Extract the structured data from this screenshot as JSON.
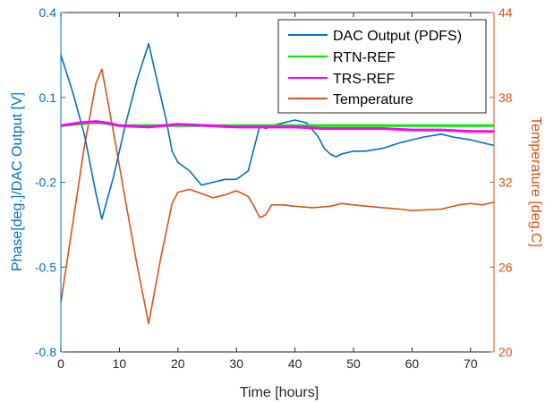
{
  "chart_data": {
    "type": "line",
    "xlabel": "Time [hours]",
    "ylabel_left": "Phase[deg.]/DAC Output [V]",
    "ylabel_right": "Temperature [deg.C]",
    "xlim": [
      0,
      74
    ],
    "xticks": [
      0,
      10,
      20,
      30,
      40,
      50,
      60,
      70
    ],
    "ylim_left": [
      -0.8,
      0.4
    ],
    "yticks_left": [
      -0.8,
      -0.5,
      -0.2,
      0.1,
      0.4
    ],
    "ylim_right": [
      20,
      44
    ],
    "yticks_right": [
      20,
      26,
      32,
      38,
      44
    ],
    "legend_position": "top-right",
    "grid": false,
    "series": [
      {
        "name": "DAC Output (PDFS)",
        "axis": "left",
        "color": "#0072BD",
        "x": [
          0,
          2,
          4,
          6,
          7,
          9,
          11,
          13,
          15,
          16,
          18,
          19,
          20,
          22,
          24,
          26,
          28,
          30,
          32,
          33,
          34,
          35,
          36,
          38,
          40,
          42,
          44,
          45,
          46,
          47,
          48,
          50,
          52,
          55,
          58,
          60,
          62,
          65,
          67,
          70,
          72,
          74
        ],
        "y": [
          0.25,
          0.12,
          -0.03,
          -0.24,
          -0.33,
          -0.18,
          0.0,
          0.16,
          0.29,
          0.2,
          0.02,
          -0.09,
          -0.13,
          -0.16,
          -0.21,
          -0.2,
          -0.19,
          -0.19,
          -0.16,
          -0.08,
          0.0,
          -0.01,
          0.0,
          0.01,
          0.02,
          0.01,
          -0.04,
          -0.08,
          -0.1,
          -0.11,
          -0.1,
          -0.09,
          -0.09,
          -0.08,
          -0.06,
          -0.05,
          -0.04,
          -0.03,
          -0.04,
          -0.05,
          -0.06,
          -0.07
        ]
      },
      {
        "name": "RTN-REF",
        "axis": "left",
        "color": "#00EE00",
        "x": [
          0,
          5,
          7,
          10,
          15,
          20,
          30,
          40,
          50,
          60,
          70,
          74
        ],
        "y": [
          0.0,
          0.01,
          0.01,
          0.0,
          0.0,
          0.0,
          0.0,
          0.0,
          0.0,
          0.0,
          0.0,
          0.0
        ]
      },
      {
        "name": "TRS-REF",
        "axis": "left",
        "color": "#FF00FF",
        "x": [
          0,
          3,
          6,
          8,
          10,
          15,
          20,
          25,
          30,
          35,
          40,
          45,
          50,
          55,
          60,
          65,
          70,
          74
        ],
        "y": [
          0.0,
          0.01,
          0.015,
          0.01,
          0.0,
          -0.005,
          0.005,
          0.0,
          -0.005,
          -0.005,
          -0.005,
          -0.01,
          -0.01,
          -0.01,
          -0.015,
          -0.015,
          -0.02,
          -0.02
        ]
      },
      {
        "name": "Temperature",
        "axis": "right",
        "color": "#D95319",
        "x": [
          0,
          2,
          4,
          6,
          7,
          9,
          11,
          13,
          15,
          17,
          19,
          20,
          22,
          24,
          26,
          28,
          30,
          32,
          33,
          34,
          35,
          36,
          38,
          40,
          43,
          46,
          48,
          50,
          55,
          58,
          60,
          65,
          68,
          70,
          72,
          74
        ],
        "y": [
          23.5,
          29.0,
          34.5,
          39.0,
          40.0,
          35.5,
          30.8,
          26.2,
          22.0,
          26.5,
          30.5,
          31.3,
          31.5,
          31.2,
          30.9,
          31.1,
          31.4,
          31.0,
          30.3,
          29.5,
          29.7,
          30.4,
          30.4,
          30.3,
          30.2,
          30.3,
          30.5,
          30.4,
          30.2,
          30.1,
          30.0,
          30.1,
          30.4,
          30.5,
          30.4,
          30.6
        ]
      }
    ]
  }
}
